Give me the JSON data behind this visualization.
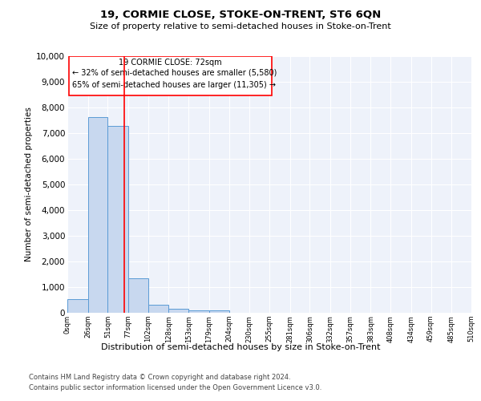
{
  "title1": "19, CORMIE CLOSE, STOKE-ON-TRENT, ST6 6QN",
  "title2": "Size of property relative to semi-detached houses in Stoke-on-Trent",
  "xlabel": "Distribution of semi-detached houses by size in Stoke-on-Trent",
  "ylabel": "Number of semi-detached properties",
  "annotation_line1": "19 CORMIE CLOSE: 72sqm",
  "annotation_line2": "← 32% of semi-detached houses are smaller (5,580)",
  "annotation_line3": "65% of semi-detached houses are larger (11,305) →",
  "footer1": "Contains HM Land Registry data © Crown copyright and database right 2024.",
  "footer2": "Contains public sector information licensed under the Open Government Licence v3.0.",
  "bar_color": "#c8d8ef",
  "bar_edge_color": "#5b9bd5",
  "red_line_x": 72,
  "ylim": [
    0,
    10000
  ],
  "bin_edges": [
    0,
    26,
    51,
    77,
    102,
    128,
    153,
    179,
    204,
    230,
    255,
    281,
    306,
    332,
    357,
    383,
    408,
    434,
    459,
    485,
    510
  ],
  "bin_labels": [
    "0sqm",
    "26sqm",
    "51sqm",
    "77sqm",
    "102sqm",
    "128sqm",
    "153sqm",
    "179sqm",
    "204sqm",
    "230sqm",
    "255sqm",
    "281sqm",
    "306sqm",
    "332sqm",
    "357sqm",
    "383sqm",
    "408sqm",
    "434sqm",
    "459sqm",
    "485sqm",
    "510sqm"
  ],
  "bar_heights": [
    530,
    7630,
    7270,
    1350,
    320,
    150,
    100,
    80,
    0,
    0,
    0,
    0,
    0,
    0,
    0,
    0,
    0,
    0,
    0,
    0
  ],
  "background_color": "#eef2fa",
  "yticks": [
    0,
    1000,
    2000,
    3000,
    4000,
    5000,
    6000,
    7000,
    8000,
    9000,
    10000
  ]
}
